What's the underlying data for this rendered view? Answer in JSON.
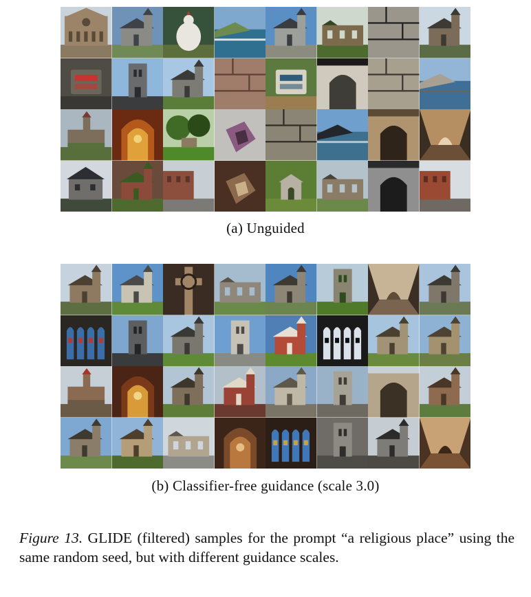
{
  "panel_a": {
    "caption": "(a)  Unguided",
    "tiles": [
      {
        "sky": "#c9d3dc",
        "ground": "#8a7a62",
        "main": "#9b8468",
        "accent": "#5a4a38",
        "kind": "facade"
      },
      {
        "sky": "#6e92b8",
        "ground": "#6f8a55",
        "main": "#8b8b86",
        "accent": "#3f4348",
        "kind": "church"
      },
      {
        "sky": "#37523a",
        "ground": "#5c6e3c",
        "main": "#e9e6df",
        "accent": "#b33a2e",
        "kind": "bird"
      },
      {
        "sky": "#7fa8cf",
        "ground": "#2f6f8f",
        "main": "#6d8a4f",
        "accent": "#d9e2e6",
        "kind": "coast"
      },
      {
        "sky": "#5a8fc4",
        "ground": "#8b8b7e",
        "main": "#9d9f9a",
        "accent": "#3a3d40",
        "kind": "church"
      },
      {
        "sky": "#cfd8cc",
        "ground": "#4d6b2f",
        "main": "#7c6a4d",
        "accent": "#33461f",
        "kind": "ruin"
      },
      {
        "sky": "#3b3a36",
        "ground": "#6a675f",
        "main": "#9a968c",
        "accent": "#1f1e1b",
        "kind": "stone"
      },
      {
        "sky": "#cbd7e1",
        "ground": "#5a6b45",
        "main": "#7a6c58",
        "accent": "#3d3a33",
        "kind": "church"
      },
      {
        "sky": "#4f4c45",
        "ground": "#3a3834",
        "main": "#6b665a",
        "accent": "#c9322e",
        "kind": "sign"
      },
      {
        "sky": "#8fb7dc",
        "ground": "#3b3c3e",
        "main": "#6a6b6d",
        "accent": "#2a2b2e",
        "kind": "tower"
      },
      {
        "sky": "#a8c7e3",
        "ground": "#5b7d3a",
        "main": "#7c7b76",
        "accent": "#3a3a38",
        "kind": "church"
      },
      {
        "sky": "#8d6d5e",
        "ground": "#7a5a4d",
        "main": "#a07c6a",
        "accent": "#5d4034",
        "kind": "stone"
      },
      {
        "sky": "#5c7a3f",
        "ground": "#9a7e4f",
        "main": "#d7d2c3",
        "accent": "#2e5c7a",
        "kind": "sign"
      },
      {
        "sky": "#1c1b19",
        "ground": "#6b6a63",
        "main": "#cfcabd",
        "accent": "#3e3d38",
        "kind": "arch"
      },
      {
        "sky": "#7d776c",
        "ground": "#5e5950",
        "main": "#a7a08f",
        "accent": "#3a362f",
        "kind": "stone"
      },
      {
        "sky": "#93b6d6",
        "ground": "#3f6f96",
        "main": "#a8a193",
        "accent": "#6b6559",
        "kind": "coast"
      },
      {
        "sky": "#aab6c0",
        "ground": "#596f3b",
        "main": "#7d6d5b",
        "accent": "#7a3a32",
        "kind": "castle"
      },
      {
        "sky": "#6b2a12",
        "ground": "#b3591c",
        "main": "#e0a13a",
        "accent": "#f2d27a",
        "kind": "ornate"
      },
      {
        "sky": "#b9cfa8",
        "ground": "#4f8a2a",
        "main": "#3f6b26",
        "accent": "#2a4a18",
        "kind": "garden"
      },
      {
        "sky": "#c2c0bd",
        "ground": "#6d5a6a",
        "main": "#8a5b80",
        "accent": "#4a2f44",
        "kind": "object"
      },
      {
        "sky": "#5e5a4f",
        "ground": "#4a463d",
        "main": "#8b8576",
        "accent": "#2e2b26",
        "kind": "stone"
      },
      {
        "sky": "#6f9fcd",
        "ground": "#3d6f8f",
        "main": "#23272c",
        "accent": "#b9c6cf",
        "kind": "coast"
      },
      {
        "sky": "#5d4a36",
        "ground": "#8c7455",
        "main": "#b09470",
        "accent": "#2e241a",
        "kind": "arch"
      },
      {
        "sky": "#3a2d22",
        "ground": "#6b4f36",
        "main": "#b58e62",
        "accent": "#e7d3b1",
        "kind": "hall"
      },
      {
        "sky": "#d2d8de",
        "ground": "#3f4a3a",
        "main": "#6f6e6b",
        "accent": "#2c2e31",
        "kind": "house"
      },
      {
        "sky": "#6a4a3a",
        "ground": "#4e6a2e",
        "main": "#8b4a3a",
        "accent": "#3a5a22",
        "kind": "church"
      },
      {
        "sky": "#c8cfd4",
        "ground": "#7b7a76",
        "main": "#8c4f3e",
        "accent": "#5a3329",
        "kind": "street"
      },
      {
        "sky": "#4a2f23",
        "ground": "#5d3d2c",
        "main": "#8d6a4d",
        "accent": "#c9b08a",
        "kind": "object"
      },
      {
        "sky": "#5b7d34",
        "ground": "#6b8a3a",
        "main": "#b6b1a3",
        "accent": "#3a4a26",
        "kind": "shrine"
      },
      {
        "sky": "#b4c2cc",
        "ground": "#6b8a4a",
        "main": "#8a7c66",
        "accent": "#4a4438",
        "kind": "ruin"
      },
      {
        "sky": "#2a2a2a",
        "ground": "#5a5a5a",
        "main": "#8f8f8f",
        "accent": "#1c1c1c",
        "kind": "arch"
      },
      {
        "sky": "#d7dde1",
        "ground": "#6e6a63",
        "main": "#9a4a33",
        "accent": "#5e2b1e",
        "kind": "street"
      }
    ]
  },
  "panel_b": {
    "caption": "(b)  Classifier-free guidance (scale 3.0)",
    "tiles": [
      {
        "sky": "#c6d3de",
        "ground": "#5d6e43",
        "main": "#8e7a60",
        "accent": "#4c4033",
        "kind": "church"
      },
      {
        "sky": "#5d93c9",
        "ground": "#5f8a3a",
        "main": "#c9c3b3",
        "accent": "#4a4a48",
        "kind": "church"
      },
      {
        "sky": "#3a2c22",
        "ground": "#5a432f",
        "main": "#a08566",
        "accent": "#2a1f17",
        "kind": "cross"
      },
      {
        "sky": "#a5bccf",
        "ground": "#6a8a4a",
        "main": "#8f887a",
        "accent": "#5a5247",
        "kind": "ruin"
      },
      {
        "sky": "#4f86c0",
        "ground": "#6c8550",
        "main": "#8d8677",
        "accent": "#3d3a34",
        "kind": "church"
      },
      {
        "sky": "#b7cbd9",
        "ground": "#4e7a2a",
        "main": "#8a8472",
        "accent": "#2f4a1e",
        "kind": "tower"
      },
      {
        "sky": "#3b2e24",
        "ground": "#7a6450",
        "main": "#c7b396",
        "accent": "#5e4b3a",
        "kind": "hall"
      },
      {
        "sky": "#a9c4dc",
        "ground": "#6b7a55",
        "main": "#7f786a",
        "accent": "#3c3932",
        "kind": "church"
      },
      {
        "sky": "#2a2622",
        "ground": "#4a3c30",
        "main": "#3b6ea8",
        "accent": "#b83a2e",
        "kind": "glass"
      },
      {
        "sky": "#7fa6cf",
        "ground": "#3a3b3c",
        "main": "#5d5e5f",
        "accent": "#242526",
        "kind": "tower"
      },
      {
        "sky": "#a9c6e0",
        "ground": "#5f8a36",
        "main": "#7a776f",
        "accent": "#3a3936",
        "kind": "church"
      },
      {
        "sky": "#6f9fd1",
        "ground": "#8a8a84",
        "main": "#c7c2b6",
        "accent": "#4b4a46",
        "kind": "tower"
      },
      {
        "sky": "#4f7fb5",
        "ground": "#5d8a2e",
        "main": "#b44a38",
        "accent": "#e7e0d2",
        "kind": "church"
      },
      {
        "sky": "#1a1a1a",
        "ground": "#2a2a2a",
        "main": "#d9e2ea",
        "accent": "#0f0f0f",
        "kind": "glass"
      },
      {
        "sky": "#a7c4de",
        "ground": "#6a8a3e",
        "main": "#a39376",
        "accent": "#4a4030",
        "kind": "church"
      },
      {
        "sky": "#8db2d4",
        "ground": "#6b7e45",
        "main": "#a4916f",
        "accent": "#4e4333",
        "kind": "church"
      },
      {
        "sky": "#c7cfd6",
        "ground": "#6b5a46",
        "main": "#8b6a52",
        "accent": "#a8332a",
        "kind": "castle"
      },
      {
        "sky": "#4a2414",
        "ground": "#7a3a1a",
        "main": "#d99a3a",
        "accent": "#f3d589",
        "kind": "ornate"
      },
      {
        "sky": "#b2c5d4",
        "ground": "#5d7d39",
        "main": "#7d6f5a",
        "accent": "#3e372c",
        "kind": "church"
      },
      {
        "sky": "#b3c0c9",
        "ground": "#6a3a30",
        "main": "#9a4236",
        "accent": "#e2d8c7",
        "kind": "church"
      },
      {
        "sky": "#8ba9c6",
        "ground": "#7a7466",
        "main": "#bfb8a6",
        "accent": "#5e584b",
        "kind": "church"
      },
      {
        "sky": "#9ab2c8",
        "ground": "#6e6a61",
        "main": "#a7a296",
        "accent": "#3f3c36",
        "kind": "tower"
      },
      {
        "sky": "#c9d1d6",
        "ground": "#6e5f4a",
        "main": "#b5a58a",
        "accent": "#3b3225",
        "kind": "arch"
      },
      {
        "sky": "#c3ced8",
        "ground": "#5d7d3e",
        "main": "#8e6a4e",
        "accent": "#4a3628",
        "kind": "church"
      },
      {
        "sky": "#7ea8d2",
        "ground": "#6c8a4c",
        "main": "#8a7e6a",
        "accent": "#3f3a30",
        "kind": "church"
      },
      {
        "sky": "#8fb4d8",
        "ground": "#4f6a2f",
        "main": "#b59d78",
        "accent": "#4d3f2c",
        "kind": "church"
      },
      {
        "sky": "#cfd6dc",
        "ground": "#8b8b87",
        "main": "#b1a58f",
        "accent": "#5e574b",
        "kind": "ruin"
      },
      {
        "sky": "#3a2518",
        "ground": "#7a4a2a",
        "main": "#b8783e",
        "accent": "#e4c087",
        "kind": "ornate"
      },
      {
        "sky": "#2b1e16",
        "ground": "#5d3f2a",
        "main": "#3f78b8",
        "accent": "#c2a24a",
        "kind": "glass"
      },
      {
        "sky": "#6f6c68",
        "ground": "#4e4c49",
        "main": "#8d8a84",
        "accent": "#2f2e2c",
        "kind": "tower"
      },
      {
        "sky": "#c6cdd2",
        "ground": "#4d4a46",
        "main": "#7e7c78",
        "accent": "#2c2b29",
        "kind": "church"
      },
      {
        "sky": "#4a3322",
        "ground": "#7a5334",
        "main": "#c8a274",
        "accent": "#3b2717",
        "kind": "hall"
      }
    ]
  },
  "figure": {
    "label": "Figure 13.",
    "text": " GLIDE (filtered) samples for the prompt “a religious place” using the same random seed, but with different guidance scales."
  }
}
